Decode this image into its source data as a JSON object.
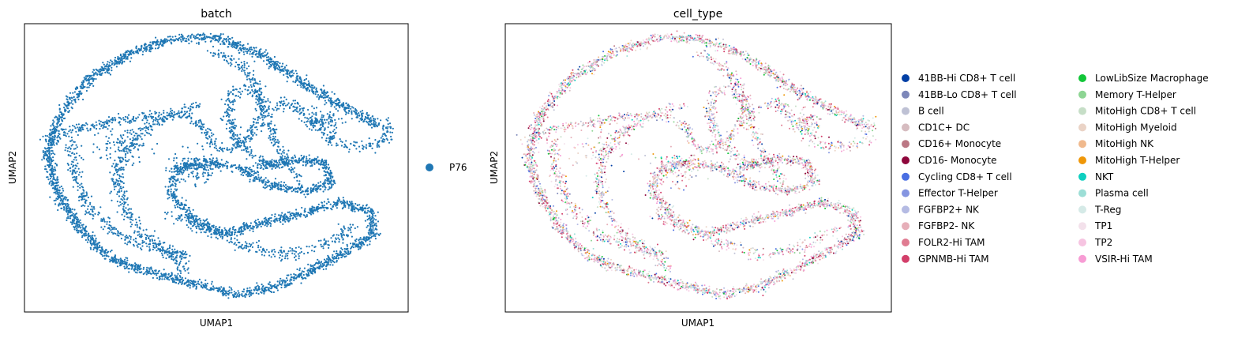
{
  "chart_data": [
    {
      "type": "scatter",
      "title": "batch",
      "xlabel": "UMAP1",
      "ylabel": "UMAP2",
      "grid": false,
      "axis_ticks": false,
      "legend_position": "right",
      "series": [
        {
          "name": "P76",
          "color": "#1f77b4"
        }
      ],
      "point_size": "small",
      "n_points_approx": 9000
    },
    {
      "type": "scatter",
      "title": "cell_type",
      "xlabel": "UMAP1",
      "ylabel": "UMAP2",
      "grid": false,
      "axis_ticks": false,
      "legend_position": "right",
      "legend_columns": 2,
      "point_size": "small",
      "n_points_approx": 9000,
      "series": [
        {
          "name": "41BB-Hi CD8+ T cell",
          "color": "#023fa5"
        },
        {
          "name": "41BB-Lo CD8+ T cell",
          "color": "#7d87b9"
        },
        {
          "name": "B cell",
          "color": "#bec1d4"
        },
        {
          "name": "CD1C+ DC",
          "color": "#d6bcc0"
        },
        {
          "name": "CD16+ Monocyte",
          "color": "#bb7784"
        },
        {
          "name": "CD16- Monocyte",
          "color": "#8e063b"
        },
        {
          "name": "Cycling CD8+ T cell",
          "color": "#4a6fe3"
        },
        {
          "name": "Effector T-Helper",
          "color": "#8595e1"
        },
        {
          "name": "FGFBP2+ NK",
          "color": "#b5bbe3"
        },
        {
          "name": "FGFBP2- NK",
          "color": "#e6afb9"
        },
        {
          "name": "FOLR2-Hi TAM",
          "color": "#e07b91"
        },
        {
          "name": "GPNMB-Hi TAM",
          "color": "#d33f6a"
        },
        {
          "name": "LowLibSize Macrophage",
          "color": "#11c638"
        },
        {
          "name": "Memory T-Helper",
          "color": "#8dd593"
        },
        {
          "name": "MitoHigh CD8+ T cell",
          "color": "#c6dec7"
        },
        {
          "name": "MitoHigh Myeloid",
          "color": "#ead3c6"
        },
        {
          "name": "MitoHigh NK",
          "color": "#f0b98d"
        },
        {
          "name": "MitoHigh T-Helper",
          "color": "#ef9708"
        },
        {
          "name": "NKT",
          "color": "#0fcfc0"
        },
        {
          "name": "Plasma cell",
          "color": "#9cded6"
        },
        {
          "name": "T-Reg",
          "color": "#d5eae7"
        },
        {
          "name": "TP1",
          "color": "#f3e1eb"
        },
        {
          "name": "TP2",
          "color": "#f6c4e1"
        },
        {
          "name": "VSIR-Hi TAM",
          "color": "#f79cd4"
        }
      ]
    }
  ]
}
